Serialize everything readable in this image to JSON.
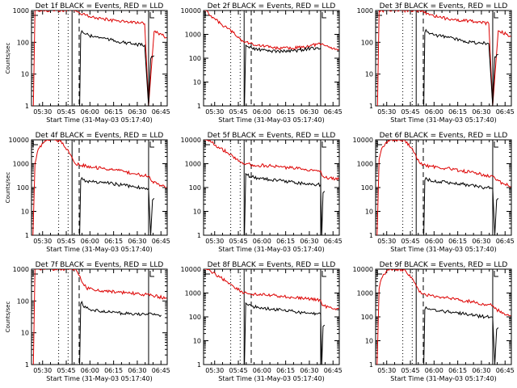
{
  "figure": {
    "background": "#ffffff",
    "event_color": "#000000",
    "lld_color": "#dd0000",
    "xticks": [
      "05:30",
      "05:45",
      "06:00",
      "06:15",
      "06:30",
      "06:45"
    ],
    "yticks": [
      "1",
      "10",
      "100",
      "1000",
      "10000"
    ]
  },
  "chart_data": [
    {
      "type": "line",
      "title": "Det 1f BLACK = Events, RED = LLD",
      "xlabel": "Start Time (31-May-03 05:17:40)",
      "ylabel": "Counts/sec",
      "ylim": [
        1,
        1000
      ],
      "yscale": "log",
      "xlim_minutes": [
        5.3,
        91.3
      ],
      "grid": false,
      "series": [
        {
          "color": "#dd0000",
          "x": [
            6.5,
            7.5,
            8.6,
            9.4,
            14.0,
            22.0,
            30.0,
            32.5,
            34.5,
            36.0,
            38.0,
            40.0,
            42.0,
            45.0,
            50.0,
            55.0,
            60.0,
            66.0,
            72.0,
            77.0,
            79.5,
            83.0,
            88.0,
            91.0
          ],
          "y": [
            0.3,
            1000,
            1000,
            1000,
            1000,
            1000,
            1000,
            1000,
            900,
            800,
            800,
            720,
            650,
            600,
            550,
            500,
            480,
            450,
            400,
            380,
            0.3,
            220,
            170,
            140
          ]
        },
        {
          "color": "#000000",
          "x": [
            35.8,
            36.5,
            37.2,
            38.0,
            40.0,
            42.0,
            45.0,
            50.0,
            55.0,
            60.0,
            66.0,
            72.0,
            77.0,
            79.5,
            80.8,
            82.0,
            83.0
          ],
          "y": [
            0.3,
            180,
            230,
            200,
            180,
            160,
            150,
            140,
            120,
            105,
            95,
            85,
            80,
            0.3,
            30,
            35,
            38
          ]
        }
      ]
    },
    {
      "type": "line",
      "title": "Det 2f BLACK = Events, RED = LLD",
      "xlabel": "Start Time (31-May-03 05:17:40)",
      "ylabel": "",
      "ylim": [
        1,
        10000
      ],
      "yscale": "log",
      "xlim_minutes": [
        5.3,
        91.3
      ],
      "grid": false,
      "series": [
        {
          "color": "#dd0000",
          "x": [
            6.0,
            7.0,
            8.0,
            10.0,
            13.0,
            16.0,
            20.0,
            24.0,
            28.0,
            30.5,
            32.0,
            35.0,
            40.0,
            48.0,
            55.0,
            62.0,
            68.0,
            73.0,
            77.0,
            80.0,
            85.0,
            91.0
          ],
          "y": [
            10000,
            10000,
            9000,
            6000,
            4000,
            2800,
            1900,
            1200,
            700,
            500,
            480,
            420,
            350,
            290,
            260,
            260,
            290,
            350,
            380,
            380,
            300,
            230
          ]
        },
        {
          "color": "#000000",
          "x": [
            31.2,
            32.0,
            33.0,
            36.0,
            40.0,
            48.0,
            55.0,
            62.0,
            68.0,
            73.0,
            77.0,
            79.5
          ],
          "y": [
            0.3,
            350,
            310,
            260,
            230,
            200,
            195,
            200,
            230,
            260,
            270,
            260
          ]
        }
      ]
    },
    {
      "type": "line",
      "title": "Det 3f BLACK = Events, RED = LLD",
      "xlabel": "Start Time (31-May-03 05:17:40)",
      "ylabel": "",
      "ylim": [
        1,
        1000
      ],
      "yscale": "log",
      "xlim_minutes": [
        5.3,
        91.3
      ],
      "grid": false,
      "series": [
        {
          "color": "#dd0000",
          "x": [
            6.5,
            7.5,
            8.6,
            9.4,
            14.0,
            22.0,
            30.0,
            32.5,
            34.5,
            36.0,
            38.0,
            40.0,
            42.0,
            45.0,
            50.0,
            55.0,
            60.0,
            66.0,
            72.0,
            77.0,
            79.5,
            83.0,
            88.0,
            91.0
          ],
          "y": [
            0.3,
            1000,
            1000,
            1000,
            1000,
            1000,
            1000,
            1000,
            950,
            850,
            820,
            750,
            680,
            620,
            560,
            510,
            490,
            460,
            420,
            390,
            0.3,
            230,
            180,
            150
          ]
        },
        {
          "color": "#000000",
          "x": [
            35.8,
            36.5,
            37.2,
            38.0,
            40.0,
            42.0,
            45.0,
            50.0,
            55.0,
            60.0,
            66.0,
            72.0,
            77.0,
            79.5,
            80.8,
            82.0,
            83.0
          ],
          "y": [
            0.3,
            200,
            250,
            210,
            190,
            170,
            160,
            150,
            130,
            115,
            100,
            95,
            90,
            0.3,
            35,
            40,
            42
          ]
        }
      ]
    },
    {
      "type": "line",
      "title": "Det 4f BLACK = Events, RED = LLD",
      "xlabel": "Start Time (31-May-03 05:17:40)",
      "ylabel": "Counts/sec",
      "ylim": [
        1,
        10000
      ],
      "yscale": "log",
      "xlim_minutes": [
        5.3,
        91.3
      ],
      "grid": false,
      "series": [
        {
          "color": "#dd0000",
          "x": [
            6.2,
            7.5,
            9.0,
            12.0,
            15.0,
            20.0,
            24.0,
            28.0,
            31.0,
            33.0,
            35.5,
            37.0,
            40.0,
            45.0,
            50.0,
            55.0,
            60.0,
            65.0,
            70.0,
            75.0,
            79.5,
            82.0,
            86.0,
            91.0
          ],
          "y": [
            0.3,
            1000,
            3000,
            7000,
            10000,
            10000,
            9000,
            4000,
            1800,
            1000,
            900,
            850,
            800,
            700,
            650,
            600,
            520,
            450,
            380,
            330,
            300,
            180,
            140,
            100
          ]
        },
        {
          "color": "#000000",
          "x": [
            35.8,
            36.5,
            37.2,
            38.0,
            40.0,
            45.0,
            50.0,
            55.0,
            60.0,
            65.0,
            70.0,
            75.0,
            79.5,
            80.8,
            82.0,
            83.0
          ],
          "y": [
            0.3,
            200,
            260,
            210,
            190,
            170,
            160,
            150,
            135,
            120,
            110,
            100,
            90,
            0.3,
            30,
            35
          ]
        }
      ]
    },
    {
      "type": "line",
      "title": "Det 5f BLACK = Events, RED = LLD",
      "xlabel": "Start Time (31-May-03 05:17:40)",
      "ylabel": "",
      "ylim": [
        1,
        10000
      ],
      "yscale": "log",
      "xlim_minutes": [
        5.3,
        91.3
      ],
      "grid": false,
      "series": [
        {
          "color": "#dd0000",
          "x": [
            6.0,
            7.0,
            8.0,
            10.0,
            13.0,
            16.0,
            20.0,
            24.0,
            28.0,
            31.0,
            32.5,
            35.0,
            40.0,
            48.0,
            55.0,
            62.0,
            68.0,
            73.0,
            77.0,
            79.5,
            80.5,
            85.0,
            91.0
          ],
          "y": [
            10000,
            10000,
            9500,
            8000,
            6000,
            4500,
            3000,
            2000,
            1300,
            1000,
            1000,
            900,
            850,
            800,
            720,
            650,
            600,
            560,
            530,
            500,
            300,
            250,
            220
          ]
        },
        {
          "color": "#000000",
          "x": [
            31.2,
            32.0,
            33.0,
            36.0,
            40.0,
            48.0,
            55.0,
            62.0,
            68.0,
            73.0,
            77.0,
            79.5,
            80.2,
            81.0,
            82.0
          ],
          "y": [
            0.3,
            380,
            330,
            280,
            250,
            210,
            190,
            170,
            150,
            140,
            135,
            130,
            0.3,
            60,
            70
          ]
        }
      ]
    },
    {
      "type": "line",
      "title": "Det 6f BLACK = Events, RED = LLD",
      "xlabel": "Start Time (31-May-03 05:17:40)",
      "ylabel": "",
      "ylim": [
        1,
        10000
      ],
      "yscale": "log",
      "xlim_minutes": [
        5.3,
        91.3
      ],
      "grid": false,
      "series": [
        {
          "color": "#dd0000",
          "x": [
            6.2,
            7.5,
            9.0,
            12.0,
            15.0,
            20.0,
            24.0,
            28.0,
            31.0,
            33.0,
            35.5,
            37.0,
            40.0,
            45.0,
            50.0,
            55.0,
            60.0,
            65.0,
            70.0,
            75.0,
            79.5,
            82.0,
            86.0,
            91.0
          ],
          "y": [
            0.3,
            1500,
            4000,
            8000,
            10000,
            10000,
            9000,
            4500,
            2000,
            1100,
            900,
            850,
            780,
            700,
            640,
            580,
            500,
            440,
            380,
            330,
            300,
            200,
            150,
            110
          ]
        },
        {
          "color": "#000000",
          "x": [
            35.8,
            36.5,
            37.2,
            38.0,
            40.0,
            45.0,
            50.0,
            55.0,
            60.0,
            65.0,
            70.0,
            75.0,
            79.5,
            80.8,
            82.0,
            83.0
          ],
          "y": [
            0.3,
            200,
            260,
            220,
            200,
            175,
            165,
            150,
            140,
            125,
            110,
            100,
            95,
            0.3,
            30,
            35
          ]
        }
      ]
    },
    {
      "type": "line",
      "title": "Det 7f BLACK = Events, RED = LLD",
      "xlabel": "Start Time (31-May-03 05:17:40)",
      "ylabel": "Counts/sec",
      "ylim": [
        1,
        1000
      ],
      "yscale": "log",
      "xlim_minutes": [
        5.3,
        91.3
      ],
      "grid": false,
      "series": [
        {
          "color": "#dd0000",
          "x": [
            6.5,
            7.5,
            8.6,
            9.4,
            14.0,
            22.0,
            30.0,
            32.5,
            34.5,
            36.0,
            38.0,
            40.0,
            42.0,
            45.0,
            50.0,
            55.0,
            60.0,
            66.0,
            72.0,
            77.0,
            82.0,
            86.0,
            91.0
          ],
          "y": [
            0.3,
            1000,
            1000,
            1000,
            1000,
            1000,
            1000,
            1000,
            800,
            600,
            350,
            260,
            240,
            220,
            210,
            200,
            190,
            180,
            170,
            160,
            150,
            135,
            120
          ]
        },
        {
          "color": "#000000",
          "x": [
            35.8,
            36.5,
            37.2,
            38.0,
            40.0,
            42.0,
            45.0,
            50.0,
            55.0,
            60.0,
            66.0,
            72.0,
            77.0,
            82.0,
            86.0,
            87.5
          ],
          "y": [
            0.3,
            80,
            95,
            70,
            60,
            55,
            50,
            48,
            45,
            42,
            40,
            40,
            38,
            38,
            36,
            36
          ]
        }
      ]
    },
    {
      "type": "line",
      "title": "Det 8f BLACK = Events, RED = LLD",
      "xlabel": "Start Time (31-May-03 05:17:40)",
      "ylabel": "",
      "ylim": [
        1,
        10000
      ],
      "yscale": "log",
      "xlim_minutes": [
        5.3,
        91.3
      ],
      "grid": false,
      "series": [
        {
          "color": "#dd0000",
          "x": [
            6.0,
            7.0,
            8.0,
            10.0,
            13.0,
            16.0,
            20.0,
            24.0,
            28.0,
            31.0,
            32.5,
            35.0,
            40.0,
            48.0,
            55.0,
            62.0,
            68.0,
            73.0,
            77.0,
            79.5,
            80.5,
            85.0,
            91.0
          ],
          "y": [
            10000,
            10000,
            9500,
            8000,
            6000,
            4500,
            3000,
            2000,
            1300,
            1000,
            1000,
            900,
            850,
            800,
            720,
            650,
            600,
            560,
            530,
            500,
            300,
            250,
            220
          ]
        },
        {
          "color": "#000000",
          "x": [
            31.2,
            32.0,
            33.0,
            36.0,
            40.0,
            48.0,
            55.0,
            62.0,
            68.0,
            73.0,
            77.0,
            79.5,
            80.2,
            81.0,
            82.0
          ],
          "y": [
            0.3,
            380,
            330,
            280,
            250,
            210,
            190,
            170,
            150,
            140,
            135,
            130,
            0.3,
            40,
            45
          ]
        }
      ]
    },
    {
      "type": "line",
      "title": "Det 9f BLACK = Events, RED = LLD",
      "xlabel": "Start Time (31-May-03 05:17:40)",
      "ylabel": "",
      "ylim": [
        1,
        10000
      ],
      "yscale": "log",
      "xlim_minutes": [
        5.3,
        91.3
      ],
      "grid": false,
      "series": [
        {
          "color": "#dd0000",
          "x": [
            6.2,
            7.5,
            9.0,
            12.0,
            15.0,
            20.0,
            24.0,
            28.0,
            31.0,
            33.0,
            35.5,
            37.0,
            40.0,
            45.0,
            50.0,
            55.0,
            60.0,
            65.0,
            70.0,
            75.0,
            79.5,
            82.0,
            86.0,
            91.0
          ],
          "y": [
            0.3,
            1500,
            4000,
            8000,
            10000,
            10000,
            9000,
            4500,
            2000,
            1100,
            900,
            850,
            780,
            700,
            640,
            580,
            500,
            440,
            380,
            330,
            300,
            200,
            150,
            110
          ]
        },
        {
          "color": "#000000",
          "x": [
            35.8,
            36.5,
            37.2,
            38.0,
            40.0,
            45.0,
            50.0,
            55.0,
            60.0,
            65.0,
            70.0,
            75.0,
            79.5,
            80.8,
            82.0,
            83.0
          ],
          "y": [
            0.3,
            200,
            260,
            220,
            200,
            175,
            165,
            150,
            140,
            125,
            110,
            100,
            95,
            0.3,
            30,
            35
          ]
        }
      ]
    }
  ]
}
